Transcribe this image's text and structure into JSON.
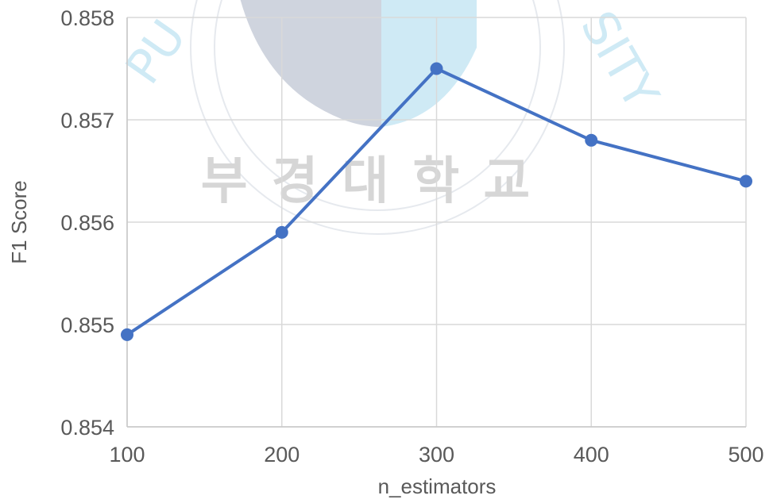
{
  "chart_data": {
    "type": "line",
    "title": "",
    "xlabel": "n_estimators",
    "ylabel": "F1 Score",
    "x": [
      100,
      200,
      300,
      400,
      500
    ],
    "series": [
      {
        "values": [
          0.8549,
          0.8559,
          0.8575,
          0.8568,
          0.8564
        ],
        "color": "#4472c4"
      }
    ],
    "xlim": [
      100,
      500
    ],
    "ylim": [
      0.854,
      0.858
    ],
    "xticks": [
      "100",
      "200",
      "300",
      "400",
      "500"
    ],
    "yticks": [
      "0.854",
      "0.855",
      "0.856",
      "0.857",
      "0.858"
    ],
    "grid": true,
    "legend": "none",
    "markers": true
  },
  "watermark": {
    "text": "PUKYONG NATIONAL UNIVERSITY 부경대학교"
  }
}
